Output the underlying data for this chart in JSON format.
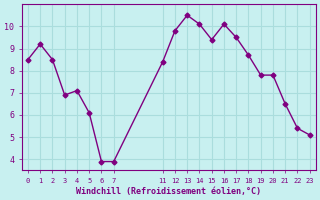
{
  "x": [
    0,
    1,
    2,
    3,
    4,
    5,
    6,
    7,
    11,
    12,
    13,
    14,
    15,
    16,
    17,
    18,
    19,
    20,
    21,
    22,
    23
  ],
  "y": [
    8.5,
    9.2,
    8.5,
    6.9,
    7.1,
    6.1,
    3.9,
    3.9,
    8.4,
    9.8,
    10.5,
    10.1,
    9.4,
    10.1,
    9.5,
    8.7,
    7.8,
    7.8,
    6.5,
    5.4,
    5.1
  ],
  "line_color": "#800080",
  "bg_color": "#c8f0f0",
  "xlabel": "Windchill (Refroidissement éolien,°C)",
  "ylim": [
    3.5,
    11
  ],
  "xlim": [
    -0.5,
    23.5
  ],
  "yticks": [
    4,
    5,
    6,
    7,
    8,
    9,
    10
  ],
  "xticks": [
    0,
    1,
    2,
    3,
    4,
    5,
    6,
    7,
    11,
    12,
    13,
    14,
    15,
    16,
    17,
    18,
    19,
    20,
    21,
    22,
    23
  ],
  "xtick_labels": [
    "0",
    "1",
    "2",
    "3",
    "4",
    "5",
    "6",
    "7",
    "11",
    "12",
    "13",
    "14",
    "15",
    "16",
    "17",
    "18",
    "19",
    "20",
    "21",
    "22",
    "23"
  ],
  "grid_color": "#aadddd",
  "font_color": "#800080"
}
